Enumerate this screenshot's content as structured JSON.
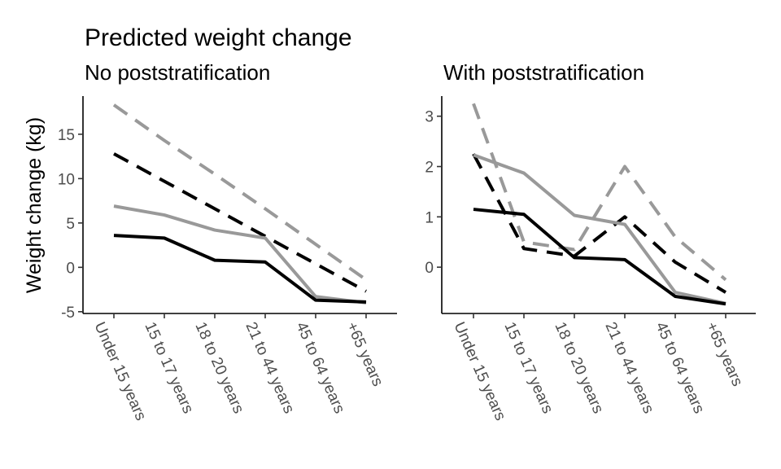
{
  "figure": {
    "title": "Predicted weight change",
    "ylabel": "Weight change (kg)"
  },
  "chart_data": [
    {
      "type": "line",
      "title": "No poststratification",
      "xlabel": "",
      "ylabel": "Weight change (kg)",
      "categories": [
        "Under 15 years",
        "15 to 17 years",
        "18 to 20 years",
        "21 to 44 years",
        "45 to 64 years",
        "+65 years"
      ],
      "yticks": [
        -5,
        0,
        5,
        10,
        15
      ],
      "ylim": [
        -5.2,
        19.3
      ],
      "series": [
        {
          "color": "#999999",
          "dash": "dashed",
          "values": [
            18.3,
            14.3,
            10.5,
            6.6,
            2.6,
            -1.4
          ]
        },
        {
          "color": "#000000",
          "dash": "dashed",
          "values": [
            12.8,
            9.7,
            6.6,
            3.5,
            0.4,
            -2.7
          ]
        },
        {
          "color": "#999999",
          "dash": "solid",
          "values": [
            6.9,
            5.9,
            4.2,
            3.3,
            -3.3,
            -4.0
          ]
        },
        {
          "color": "#000000",
          "dash": "solid",
          "values": [
            3.6,
            3.3,
            0.8,
            0.6,
            -3.7,
            -3.9
          ]
        }
      ]
    },
    {
      "type": "line",
      "title": "With poststratification",
      "xlabel": "",
      "ylabel": "",
      "categories": [
        "Under 15 years",
        "15 to 17 years",
        "18 to 20 years",
        "21 to 44 years",
        "45 to 64 years",
        "+65 years"
      ],
      "yticks": [
        0,
        1,
        2,
        3
      ],
      "ylim": [
        -0.92,
        3.4
      ],
      "series": [
        {
          "color": "#999999",
          "dash": "dashed",
          "values": [
            3.25,
            0.5,
            0.35,
            2.0,
            0.6,
            -0.25
          ]
        },
        {
          "color": "#000000",
          "dash": "dashed",
          "values": [
            2.25,
            0.37,
            0.22,
            1.0,
            0.1,
            -0.5
          ]
        },
        {
          "color": "#999999",
          "dash": "solid",
          "values": [
            2.23,
            1.87,
            1.03,
            0.85,
            -0.5,
            -0.72
          ]
        },
        {
          "color": "#000000",
          "dash": "solid",
          "values": [
            1.15,
            1.05,
            0.19,
            0.15,
            -0.58,
            -0.73
          ]
        }
      ]
    }
  ]
}
